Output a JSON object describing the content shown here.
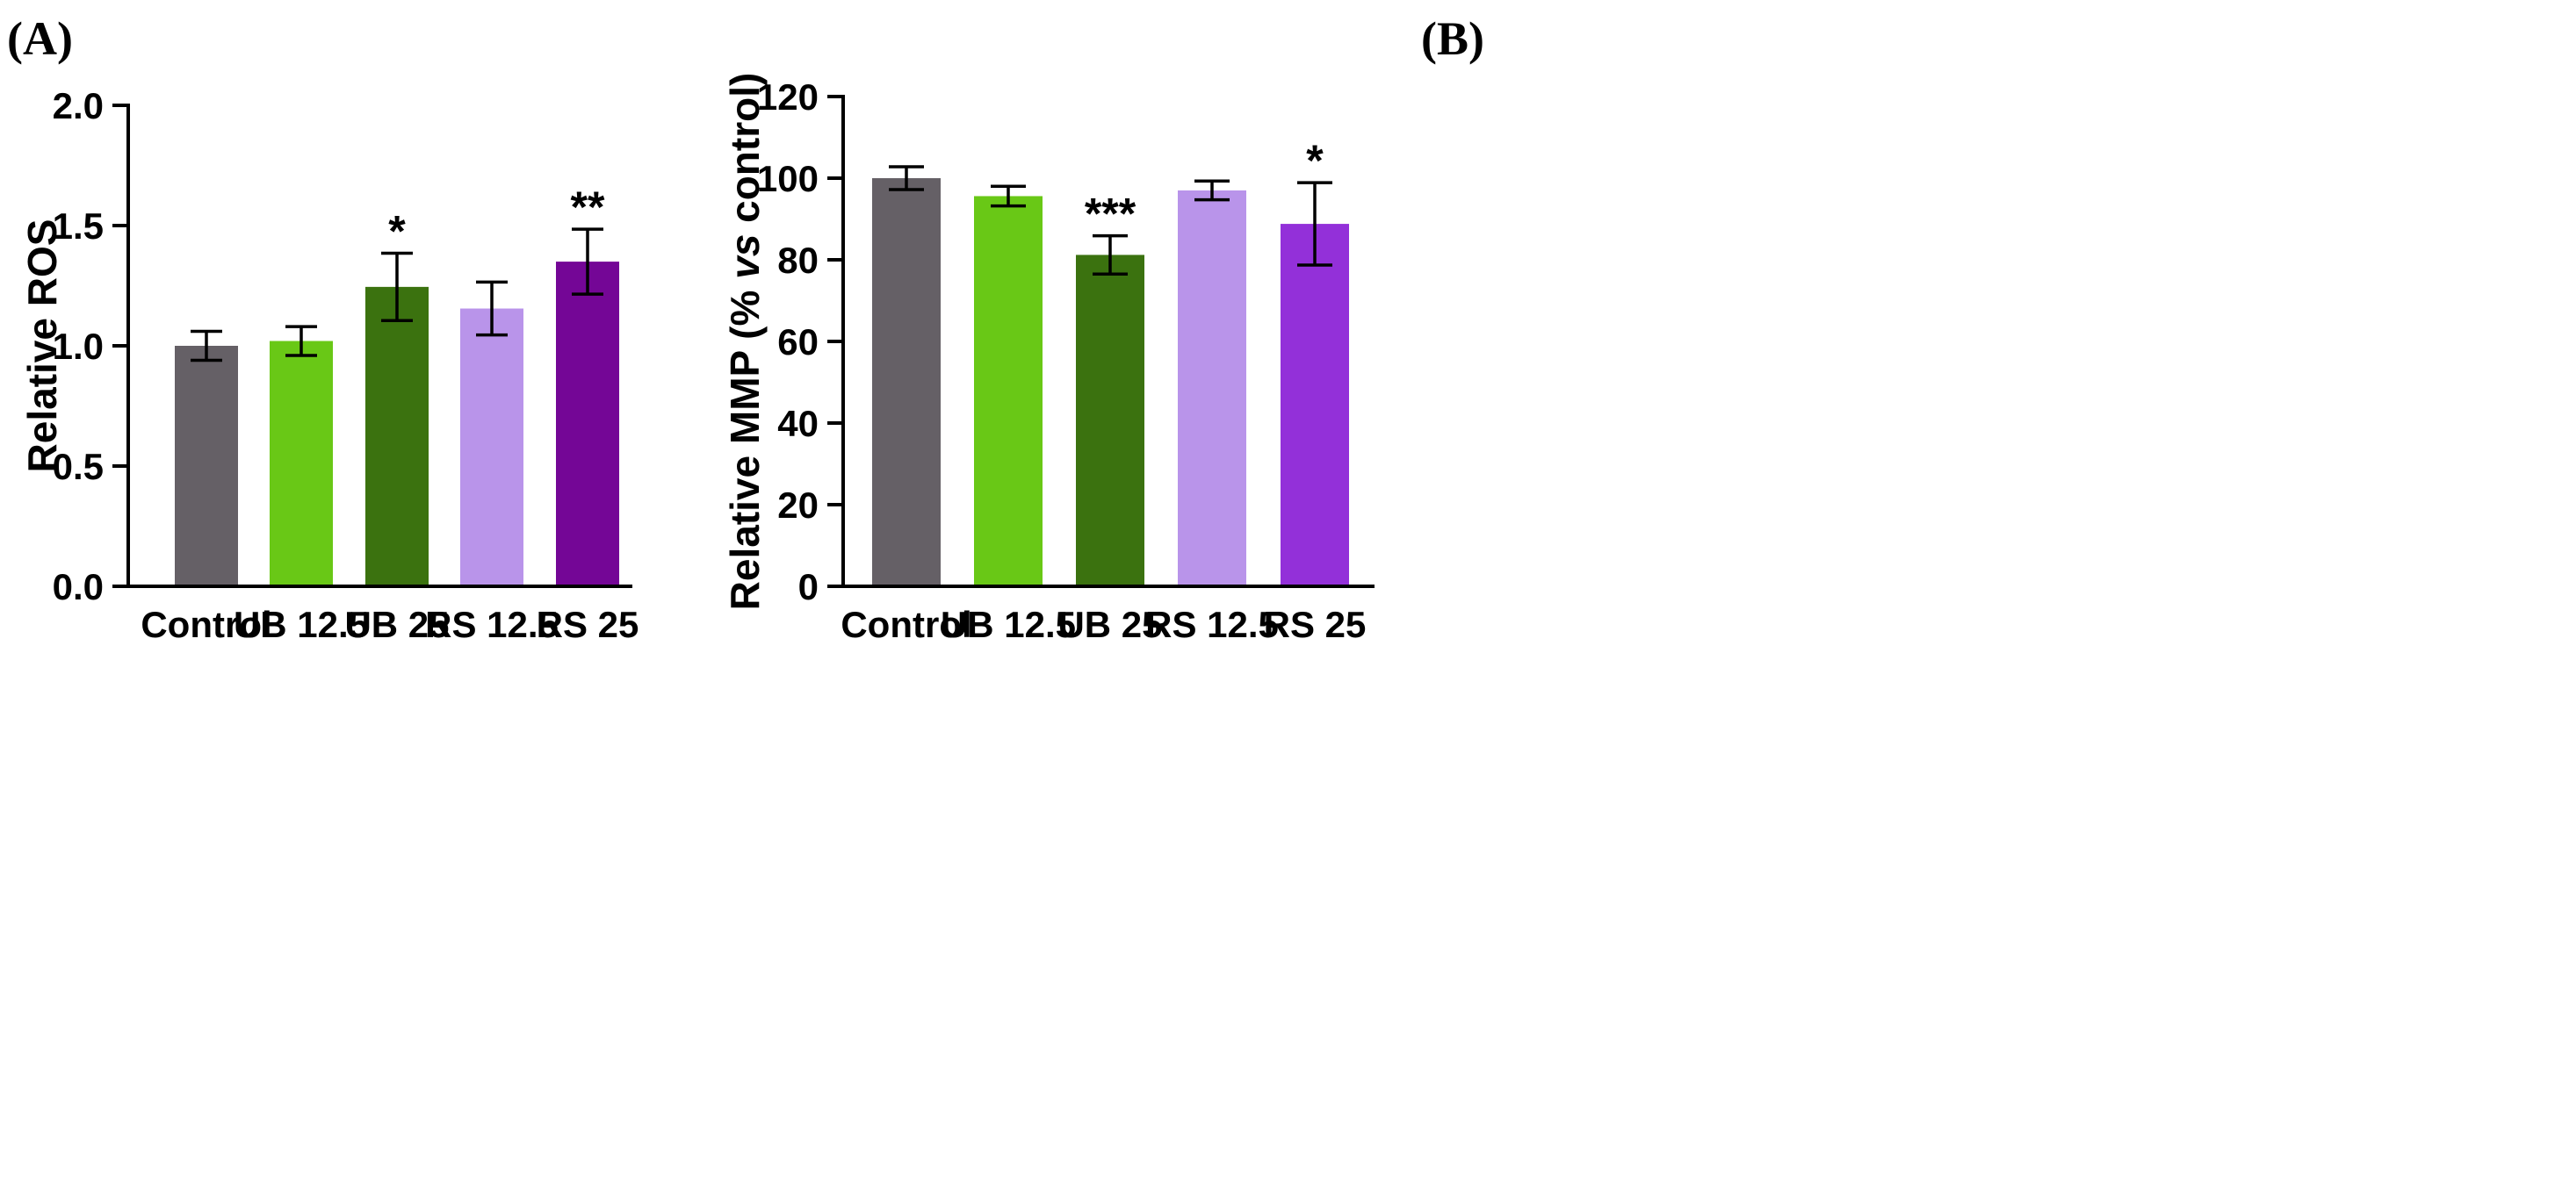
{
  "chart_data": [
    {
      "type": "bar",
      "panel_label": "(A)",
      "title": "",
      "xlabel": "",
      "ylabel": "Relative ROS",
      "ylim": [
        0,
        2.0
      ],
      "yticks": [
        0.0,
        0.5,
        1.0,
        1.5,
        2.0
      ],
      "ytick_labels": [
        "0.0",
        "0.5",
        "1.0",
        "1.5",
        "2.0"
      ],
      "grid": false,
      "categories": [
        "Control",
        "UB 12.5",
        "UB 25",
        "RS 12.5",
        "RS 25"
      ],
      "values": [
        1.0,
        1.02,
        1.245,
        1.155,
        1.35
      ],
      "errors": [
        0.06,
        0.06,
        0.14,
        0.11,
        0.135
      ],
      "significance": [
        "",
        "",
        "*",
        "",
        "**"
      ],
      "colors": [
        "#656066",
        "#69c816",
        "#3b720f",
        "#b994ea",
        "#740696"
      ]
    },
    {
      "type": "bar",
      "panel_label": "(B)",
      "title": "",
      "xlabel": "",
      "ylabel_parts": [
        "Relative MMP (% ",
        "vs",
        " control)"
      ],
      "ylim": [
        0,
        120
      ],
      "yticks": [
        0,
        20,
        40,
        60,
        80,
        100,
        120
      ],
      "ytick_labels": [
        "0",
        "20",
        "40",
        "60",
        "80",
        "100",
        "120"
      ],
      "grid": false,
      "categories": [
        "Control",
        "UB 12.5",
        "UB 25",
        "RS 12.5",
        "RS 25"
      ],
      "values": [
        100.0,
        95.6,
        81.2,
        97.0,
        88.8
      ],
      "errors": [
        2.8,
        2.4,
        4.7,
        2.3,
        10.1
      ],
      "significance": [
        "",
        "",
        "***",
        "",
        "*"
      ],
      "colors": [
        "#656066",
        "#69c816",
        "#3b720f",
        "#b994ea",
        "#9330d9"
      ]
    }
  ]
}
